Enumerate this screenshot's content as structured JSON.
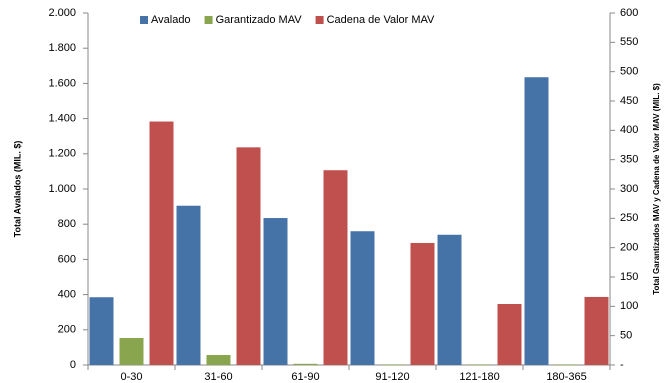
{
  "chart_data": {
    "type": "bar",
    "categories": [
      "0-30",
      "31-60",
      "61-90",
      "91-120",
      "121-180",
      "180-365"
    ],
    "y_label": "Total Avalados (MIL. $)",
    "y2_label": "Total Garantizados MAV y Cadena de Valor MAV (MIL. $)",
    "ylim": [
      0,
      2000
    ],
    "yticks": [
      0,
      200,
      400,
      600,
      800,
      {
        "value": 1000,
        "label": "1.000"
      },
      {
        "value": 1200,
        "label": "1.200"
      },
      {
        "value": 1400,
        "label": "1.400"
      },
      {
        "value": 1600,
        "label": "1.600"
      },
      {
        "value": 1800,
        "label": "1.800"
      },
      {
        "value": 2000,
        "label": "2.000"
      }
    ],
    "y2lim": [
      0,
      600
    ],
    "y2ticks": [
      {
        "value": 0,
        "label": "-"
      },
      50,
      100,
      150,
      200,
      250,
      300,
      350,
      400,
      450,
      500,
      550,
      600
    ],
    "legend": "top",
    "series": [
      {
        "name": "Avalado",
        "color": "#4572a7",
        "values": [
          385,
          905,
          835,
          760,
          740,
          1635
        ]
      },
      {
        "name": "Garantizado MAV",
        "color": "#89a54e",
        "axis": "y2",
        "values": [
          46,
          17,
          2,
          1,
          1,
          1
        ]
      },
      {
        "name": "Cadena de Valor MAV",
        "color": "#c0504d",
        "axis": "y2",
        "values": [
          415,
          371,
          332,
          208,
          104,
          116
        ]
      }
    ]
  }
}
